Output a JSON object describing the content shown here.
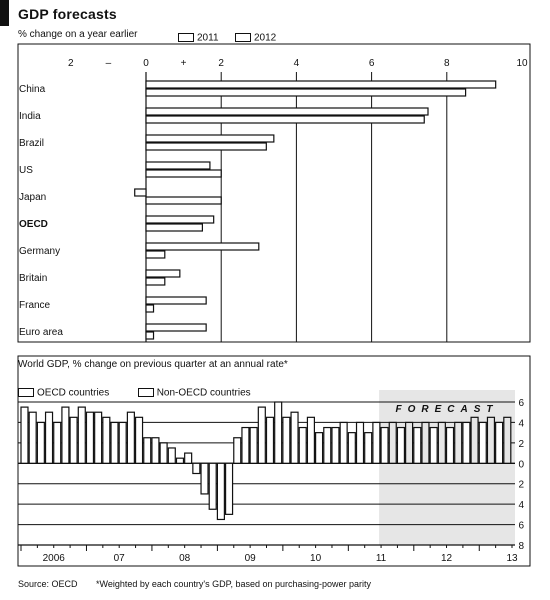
{
  "header": {
    "title": "GDP forecasts"
  },
  "chart_data": [
    {
      "type": "bar",
      "orientation": "horizontal",
      "subtitle": "% change on a year earlier",
      "categories": [
        "China",
        "India",
        "Brazil",
        "US",
        "Japan",
        "OECD",
        "Germany",
        "Britain",
        "France",
        "Euro area"
      ],
      "bold_categories": [
        "OECD"
      ],
      "series": [
        {
          "name": "2011",
          "values": [
            9.3,
            7.5,
            3.4,
            1.7,
            -0.3,
            1.8,
            3.0,
            0.9,
            1.6,
            1.6
          ]
        },
        {
          "name": "2012",
          "values": [
            8.5,
            7.4,
            3.2,
            2.0,
            2.0,
            1.5,
            0.5,
            0.5,
            0.2,
            0.2
          ]
        }
      ],
      "xlim": [
        -2,
        10
      ],
      "xticks": [
        {
          "value": -2,
          "label": "2"
        },
        {
          "value": -1,
          "label": "–"
        },
        {
          "value": 0,
          "label": "0"
        },
        {
          "value": 1,
          "label": "+"
        },
        {
          "value": 2,
          "label": "2"
        },
        {
          "value": 4,
          "label": "4"
        },
        {
          "value": 6,
          "label": "6"
        },
        {
          "value": 8,
          "label": "8"
        },
        {
          "value": 10,
          "label": "10"
        }
      ],
      "grid": true,
      "legend_position": "top"
    },
    {
      "type": "bar",
      "subtitle": "World GDP, % change on previous quarter at an annual rate*",
      "series": [
        {
          "name": "OECD countries",
          "values": [
            5.5,
            4.0,
            4.0,
            4.5,
            5.0,
            4.5,
            4.0,
            4.5,
            2.5,
            1.5,
            1.0,
            -3.0,
            -5.5,
            2.5,
            3.5,
            4.5,
            4.5,
            3.5,
            3.0,
            3.5,
            3.0,
            3.0,
            3.5,
            3.5,
            3.5,
            3.5,
            3.5,
            4.0,
            4.0,
            4.0
          ]
        },
        {
          "name": "Non-OECD countries",
          "values": [
            5.0,
            5.0,
            5.5,
            5.5,
            5.0,
            4.0,
            5.0,
            2.5,
            2.0,
            0.5,
            -1.0,
            -4.5,
            -5.0,
            3.5,
            5.5,
            6.0,
            5.0,
            4.5,
            3.5,
            4.0,
            4.0,
            4.0,
            4.0,
            4.0,
            4.0,
            4.0,
            4.0,
            4.5,
            4.5,
            4.5
          ]
        }
      ],
      "x_labels": [
        "2006",
        "07",
        "08",
        "09",
        "10",
        "11",
        "12",
        "13"
      ],
      "ylim": [
        -8,
        6
      ],
      "yticks": [
        {
          "value": 6,
          "label": "6"
        },
        {
          "value": 4,
          "label": "4"
        },
        {
          "value": 2,
          "label": "2"
        },
        {
          "value": 0,
          "label": "0"
        },
        {
          "value": -2,
          "label": "2"
        },
        {
          "value": -4,
          "label": "4"
        },
        {
          "value": -6,
          "label": "6"
        },
        {
          "value": -8,
          "label": "8"
        }
      ],
      "forecast_label": "FORECAST",
      "forecast_start_index": 22,
      "grid": true,
      "legend_position": "top-left"
    }
  ],
  "footer": {
    "source": "Source: OECD",
    "note": "*Weighted by each country's GDP, based on purchasing-power parity"
  }
}
